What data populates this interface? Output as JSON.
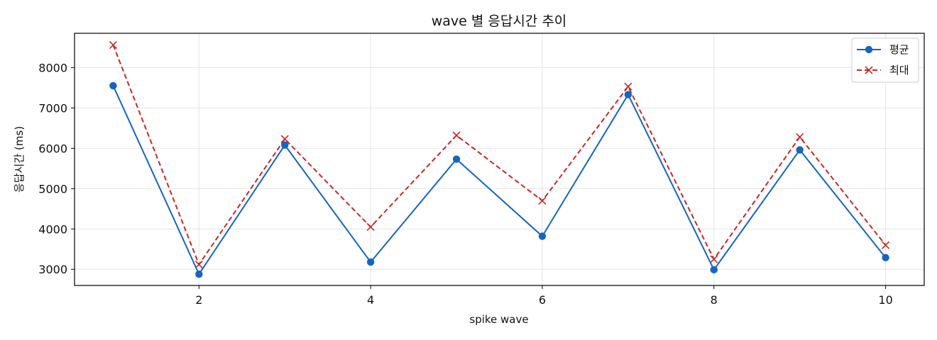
{
  "chart_data": {
    "type": "line",
    "title": "wave 별 응답시간 추이",
    "xlabel": "spike wave",
    "ylabel": "응답시간 (ms)",
    "x": [
      1,
      2,
      3,
      4,
      5,
      6,
      7,
      8,
      9,
      10
    ],
    "xlim": [
      0.55,
      10.45
    ],
    "ylim": [
      2600,
      8850
    ],
    "xticks": [
      2,
      4,
      6,
      8,
      10
    ],
    "yticks": [
      3000,
      4000,
      5000,
      6000,
      7000,
      8000
    ],
    "grid": true,
    "legend_position": "top-right",
    "series": [
      {
        "name": "평균",
        "values": [
          7550,
          2880,
          6080,
          3180,
          5730,
          3820,
          7330,
          2990,
          5960,
          3290
        ],
        "color": "#1565c0",
        "line_style": "solid",
        "marker": "circle"
      },
      {
        "name": "최대",
        "values": [
          8560,
          3120,
          6230,
          4050,
          6320,
          4700,
          7530,
          3250,
          6280,
          3600
        ],
        "color": "#c62828",
        "line_style": "dashed",
        "marker": "x"
      }
    ]
  }
}
